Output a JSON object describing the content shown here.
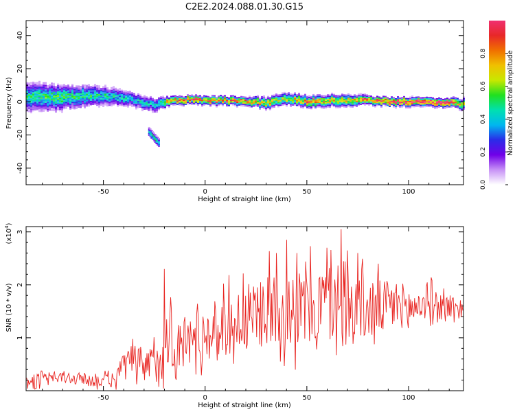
{
  "title": "C2E2.2024.088.01.30.G15",
  "chart_data": [
    {
      "type": "heatmap",
      "xlabel": "Height of straight line (km)",
      "ylabel": "Frequency (Hz)",
      "xlim": [
        -88,
        127
      ],
      "ylim": [
        -50,
        49
      ],
      "xticks": [
        -50,
        0,
        50,
        100
      ],
      "yticks": [
        40,
        20,
        0,
        -20,
        -40
      ],
      "colorbar": {
        "label": "Normalized spectral amplitude",
        "range": [
          0.0,
          1.0
        ],
        "ticks": [
          0.0,
          0.2,
          0.4,
          0.6,
          0.8
        ],
        "tick_labels": [
          "0.0",
          "0.2",
          "0.4",
          "0.6",
          "0.8"
        ],
        "colormap": [
          "#ffffff",
          "#c792f6",
          "#7000e8",
          "#2b2be8",
          "#00b7f0",
          "#00e0b0",
          "#20e020",
          "#c8e800",
          "#f0c000",
          "#f07000",
          "#e82828",
          "#f03070"
        ]
      },
      "ridge": {
        "x": [
          -85,
          -75,
          -65,
          -55,
          -45,
          -35,
          -25,
          -18,
          -10,
          0,
          10,
          20,
          30,
          40,
          50,
          60,
          70,
          80,
          90,
          100,
          110,
          120,
          127
        ],
        "freq": [
          3,
          2.5,
          3,
          4,
          3,
          1,
          -2,
          0.5,
          1,
          1,
          0.5,
          0.5,
          -1,
          2,
          0,
          1,
          0.5,
          1,
          0,
          0,
          0,
          -0.5,
          -1.5
        ],
        "amp": [
          0.45,
          0.5,
          0.48,
          0.45,
          0.42,
          0.4,
          0.38,
          0.75,
          0.85,
          0.8,
          0.8,
          0.78,
          0.65,
          0.6,
          0.75,
          0.7,
          0.72,
          0.8,
          0.9,
          0.95,
          0.9,
          0.95,
          0.6
        ],
        "spread_hz": [
          10,
          9,
          8,
          7,
          6,
          5,
          5,
          3,
          3,
          3,
          3,
          3,
          4,
          4,
          4,
          4,
          4,
          3,
          3,
          3,
          3,
          3,
          4
        ]
      },
      "secondary_blob": {
        "x": [
          -28,
          -23
        ],
        "freq": [
          -18,
          -25
        ],
        "amp": 0.5
      }
    },
    {
      "type": "line",
      "xlabel": "Height of straight line (km)",
      "ylabel": "SNR (10 * v/v)",
      "y_multiplier": "(x10^4)",
      "xlim": [
        -88,
        127
      ],
      "ylim": [
        0,
        3.1
      ],
      "xticks": [
        -50,
        0,
        50,
        100
      ],
      "yticks": [
        1,
        2,
        3
      ],
      "series": [
        {
          "color": "#e8231f",
          "x": [
            -88,
            -80,
            -70,
            -60,
            -50,
            -45,
            -40,
            -35,
            -30,
            -25,
            -20,
            -17,
            -15,
            -10,
            -5,
            0,
            5,
            10,
            15,
            20,
            25,
            30,
            35,
            40,
            45,
            50,
            55,
            60,
            65,
            70,
            75,
            80,
            85,
            90,
            95,
            100,
            105,
            110,
            115,
            120,
            127
          ],
          "y": [
            0.18,
            0.22,
            0.25,
            0.22,
            0.18,
            0.2,
            0.45,
            0.55,
            0.45,
            0.5,
            0.8,
            1.2,
            0.7,
            0.9,
            1.0,
            1.05,
            1.15,
            1.25,
            1.3,
            1.35,
            1.4,
            1.55,
            1.5,
            1.65,
            1.55,
            1.5,
            1.6,
            1.7,
            1.55,
            1.5,
            1.6,
            1.5,
            1.55,
            1.6,
            1.65,
            1.55,
            1.6,
            1.7,
            1.6,
            1.6,
            1.55
          ],
          "noise": [
            0.1,
            0.12,
            0.12,
            0.12,
            0.12,
            0.15,
            0.3,
            0.35,
            0.35,
            0.4,
            0.55,
            0.6,
            0.55,
            0.5,
            0.5,
            0.5,
            0.55,
            0.6,
            0.6,
            0.65,
            0.65,
            0.7,
            0.75,
            0.75,
            0.75,
            0.75,
            0.75,
            0.75,
            0.75,
            0.7,
            0.65,
            0.6,
            0.55,
            0.5,
            0.45,
            0.4,
            0.35,
            0.3,
            0.28,
            0.25,
            0.22
          ],
          "peaks": [
            [
              -20,
              2.3
            ],
            [
              35,
              2.6
            ],
            [
              40,
              2.85
            ],
            [
              45,
              2.6
            ],
            [
              60,
              2.7
            ],
            [
              67,
              3.05
            ],
            [
              70,
              2.65
            ],
            [
              75,
              2.6
            ],
            [
              85,
              2.4
            ]
          ]
        }
      ]
    }
  ]
}
